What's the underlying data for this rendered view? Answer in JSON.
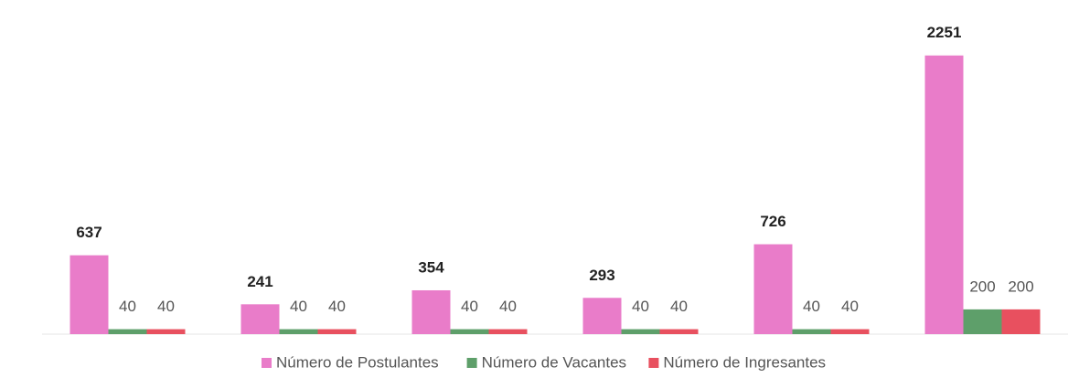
{
  "chart_data": {
    "type": "bar",
    "categories": [
      null,
      null,
      null,
      null,
      null,
      null
    ],
    "series": [
      {
        "name": "Número de Postulantes",
        "color": "#e97cc9",
        "values": [
          637,
          241,
          354,
          293,
          726,
          2251
        ]
      },
      {
        "name": "Número de Vacantes",
        "color": "#5e9f6a",
        "values": [
          40,
          40,
          40,
          40,
          40,
          200
        ]
      },
      {
        "name": "Número de Ingresantes",
        "color": "#e8505f",
        "values": [
          40,
          40,
          40,
          40,
          40,
          200
        ]
      }
    ],
    "ylim": [
      0,
      2500
    ],
    "legend": "bottom"
  }
}
